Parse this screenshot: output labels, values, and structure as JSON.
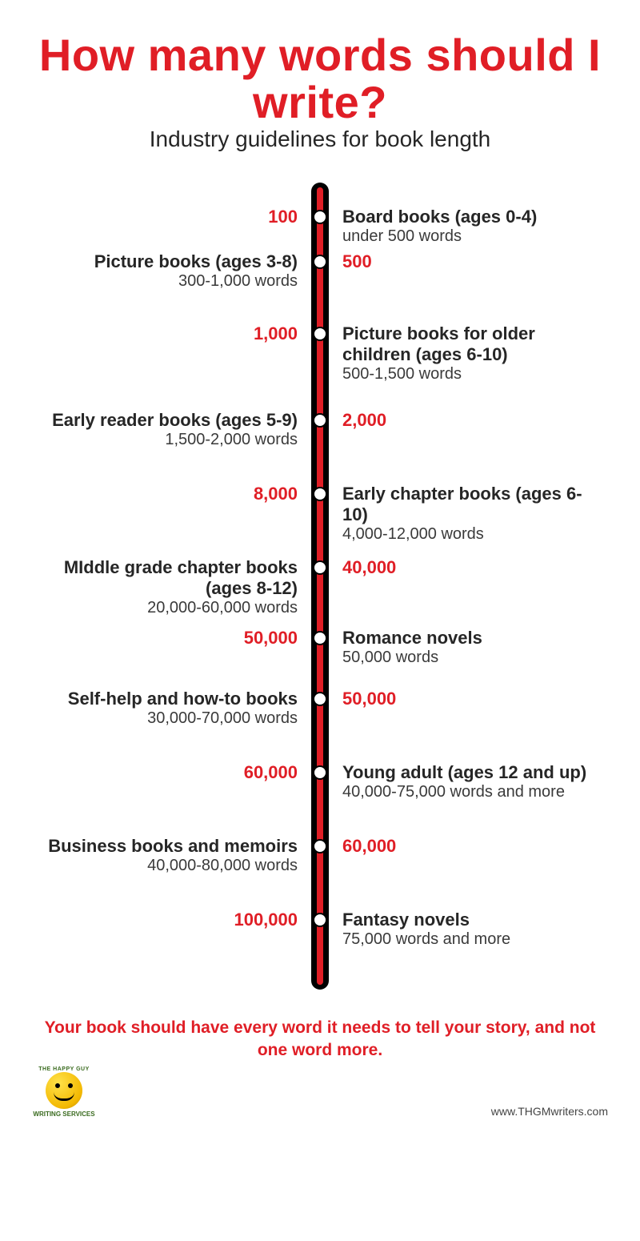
{
  "colors": {
    "accent": "#e01e26",
    "text": "#262626",
    "rail_bg": "#000000"
  },
  "typography": {
    "title_size": 56,
    "subtitle_size": 28,
    "count_size": 22,
    "cat_title_size": 22,
    "cat_sub_size": 20,
    "footer_size": 21
  },
  "title": "How many words should I write?",
  "subtitle": "Industry guidelines for book length",
  "timeline": {
    "rail_color": "#e01e26",
    "items": [
      {
        "count": "100",
        "count_side": "left",
        "title": "Board books (ages 0-4)",
        "sub": "under 500 words",
        "gap": 86
      },
      {
        "count": "500",
        "count_side": "right",
        "title": "Picture books (ages 3-8)",
        "sub": "300-1,000 words",
        "gap": 90
      },
      {
        "count": "1,000",
        "count_side": "left",
        "title": "Picture books for older children (ages 6-10)",
        "sub": "500-1,500 words",
        "gap": 108
      },
      {
        "count": "2,000",
        "count_side": "right",
        "title": "Early reader books (ages 5-9)",
        "sub": "1,500-2,000 words",
        "gap": 92
      },
      {
        "count": "8,000",
        "count_side": "left",
        "title": "Early chapter books (ages 6-10)",
        "sub": "4,000-12,000 words",
        "gap": 92
      },
      {
        "count": "40,000",
        "count_side": "right",
        "title": "MIddle grade chapter books (ages 8-12)",
        "sub": "20,000-60,000 words",
        "gap": 88
      },
      {
        "count": "50,000",
        "count_side": "left",
        "title": "Romance novels",
        "sub": "50,000 words",
        "gap": 76
      },
      {
        "count": "50,000",
        "count_side": "right",
        "title": "Self-help and how-to books",
        "sub": "30,000-70,000 words",
        "gap": 92
      },
      {
        "count": "60,000",
        "count_side": "left",
        "title": "Young adult (ages 12 and up)",
        "sub": "40,000-75,000 words and more",
        "gap": 92
      },
      {
        "count": "60,000",
        "count_side": "right",
        "title": "Business books and memoirs",
        "sub": "40,000-80,000 words",
        "gap": 92
      },
      {
        "count": "100,000",
        "count_side": "left",
        "title": "Fantasy novels",
        "sub": "75,000 words and more",
        "gap": 70
      }
    ]
  },
  "footer_message": "Your book should have every word it needs to tell your story, and not one word more.",
  "logo": {
    "top": "THE HAPPY GUY",
    "bottom": "WRITING SERVICES"
  },
  "site": "www.THGMwriters.com"
}
